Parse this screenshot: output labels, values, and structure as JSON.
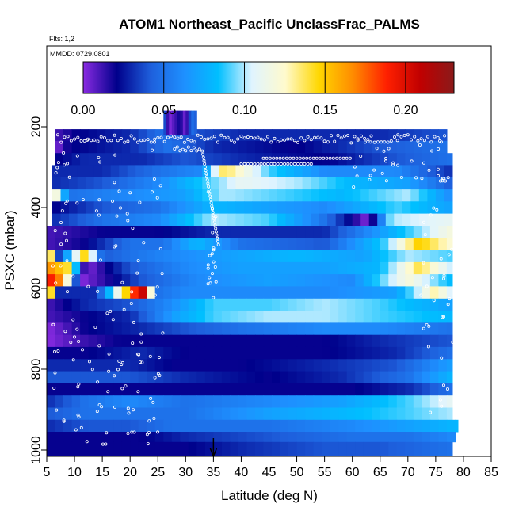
{
  "chart_data": {
    "type": "heatmap",
    "title": "ATOM1 Northeast_Pacific UnclassFrac_PALMS",
    "info_lines": [
      "Flts: 1,2",
      "MMDD: 0729,0801"
    ],
    "xlabel": "Latitude (deg N)",
    "ylabel": "PSXC (mbar)",
    "xlim": [
      5,
      85
    ],
    "ylim": [
      1000,
      0
    ],
    "x_ticks": [
      "5",
      "10",
      "15",
      "20",
      "25",
      "30",
      "35",
      "40",
      "45",
      "50",
      "55",
      "60",
      "65",
      "70",
      "75",
      "80",
      "85"
    ],
    "y_ticks": [
      "200",
      "400",
      "600",
      "800",
      "1000"
    ],
    "colorbar": {
      "ticks": [
        "0.00",
        "0.05",
        "0.10",
        "0.15",
        "0.20"
      ],
      "range": [
        0,
        0.23
      ],
      "colors": [
        "#8a2be2",
        "#00008b",
        "#1e5fdc",
        "#1e90ff",
        "#00bfff",
        "#e0f4ff",
        "#fffacd",
        "#ffd700",
        "#ff8c00",
        "#ff2000",
        "#c00000",
        "#8b1a1a"
      ]
    },
    "marker_latitude": 35,
    "pressure_levels": [
      220,
      250,
      280,
      310,
      340,
      370,
      400,
      430,
      460,
      490,
      520,
      550,
      580,
      610,
      640,
      670,
      700,
      730,
      760,
      790,
      820,
      850,
      880,
      910,
      940,
      970,
      990
    ],
    "rows": [
      {
        "p": 220,
        "lat0": 6.5,
        "lat1": 77,
        "stops": [
          [
            6.5,
            0.01
          ],
          [
            10,
            0.02
          ],
          [
            20,
            0.03
          ],
          [
            26,
            0.05
          ],
          [
            30,
            0.04
          ],
          [
            40,
            0.03
          ],
          [
            55,
            0.03
          ],
          [
            65,
            0.03
          ],
          [
            77,
            0.04
          ]
        ]
      },
      {
        "p": 250,
        "lat0": 6.5,
        "lat1": 77,
        "stops": [
          [
            6.5,
            0.0
          ],
          [
            9,
            0.02
          ],
          [
            20,
            0.03
          ],
          [
            27,
            0.05
          ],
          [
            35,
            0.03
          ],
          [
            50,
            0.02
          ],
          [
            65,
            0.04
          ],
          [
            77,
            0.05
          ]
        ]
      },
      {
        "p": 280,
        "lat0": 6.5,
        "lat1": 78,
        "stops": [
          [
            6.5,
            0.02
          ],
          [
            12,
            0.03
          ],
          [
            22,
            0.03
          ],
          [
            30,
            0.04
          ],
          [
            40,
            0.03
          ],
          [
            55,
            0.02
          ],
          [
            68,
            0.04
          ],
          [
            78,
            0.05
          ]
        ]
      },
      {
        "p": 310,
        "lat0": 6,
        "lat1": 78,
        "stops": [
          [
            6,
            0.03
          ],
          [
            15,
            0.03
          ],
          [
            25,
            0.05
          ],
          [
            33,
            0.06
          ],
          [
            37,
            0.14
          ],
          [
            45,
            0.09
          ],
          [
            55,
            0.06
          ],
          [
            68,
            0.06
          ],
          [
            78,
            0.03
          ]
        ]
      },
      {
        "p": 340,
        "lat0": 6,
        "lat1": 78,
        "stops": [
          [
            6,
            0.03
          ],
          [
            15,
            0.04
          ],
          [
            25,
            0.06
          ],
          [
            34,
            0.09
          ],
          [
            40,
            0.11
          ],
          [
            50,
            0.1
          ],
          [
            60,
            0.08
          ],
          [
            70,
            0.07
          ],
          [
            78,
            0.04
          ]
        ]
      },
      {
        "p": 370,
        "lat0": 6,
        "lat1": 78,
        "stops": [
          [
            6,
            0.14
          ],
          [
            9,
            0.05
          ],
          [
            20,
            0.06
          ],
          [
            30,
            0.07
          ],
          [
            37,
            0.1
          ],
          [
            48,
            0.09
          ],
          [
            58,
            0.08
          ],
          [
            70,
            0.1
          ],
          [
            78,
            0.06
          ]
        ]
      },
      {
        "p": 400,
        "lat0": 6,
        "lat1": 78,
        "stops": [
          [
            6,
            0.02
          ],
          [
            15,
            0.04
          ],
          [
            25,
            0.05
          ],
          [
            35,
            0.08
          ],
          [
            45,
            0.07
          ],
          [
            55,
            0.06
          ],
          [
            68,
            0.09
          ],
          [
            78,
            0.07
          ]
        ]
      },
      {
        "p": 430,
        "lat0": 6,
        "lat1": 78,
        "stops": [
          [
            6,
            0.03
          ],
          [
            15,
            0.05
          ],
          [
            25,
            0.06
          ],
          [
            35,
            0.1
          ],
          [
            45,
            0.09
          ],
          [
            55,
            0.05
          ],
          [
            63,
            0.0
          ],
          [
            67,
            0.1
          ],
          [
            78,
            0.11
          ]
        ]
      },
      {
        "p": 460,
        "lat0": 5,
        "lat1": 78,
        "stops": [
          [
            5,
            0.01
          ],
          [
            15,
            0.02
          ],
          [
            25,
            0.02
          ],
          [
            35,
            0.03
          ],
          [
            45,
            0.03
          ],
          [
            55,
            0.03
          ],
          [
            68,
            0.08
          ],
          [
            78,
            0.12
          ]
        ]
      },
      {
        "p": 490,
        "lat0": 5,
        "lat1": 78,
        "stops": [
          [
            5,
            0.01
          ],
          [
            12,
            0.02
          ],
          [
            20,
            0.05
          ],
          [
            26,
            0.05
          ],
          [
            32,
            0.08
          ],
          [
            40,
            0.05
          ],
          [
            55,
            0.04
          ],
          [
            66,
            0.09
          ],
          [
            72,
            0.15
          ],
          [
            78,
            0.12
          ]
        ]
      },
      {
        "p": 520,
        "lat0": 5,
        "lat1": 78,
        "stops": [
          [
            5,
            0.2
          ],
          [
            7,
            0.03
          ],
          [
            12,
            0.15
          ],
          [
            15,
            0.04
          ],
          [
            20,
            0.05
          ],
          [
            28,
            0.06
          ],
          [
            38,
            0.07
          ],
          [
            50,
            0.08
          ],
          [
            62,
            0.07
          ],
          [
            70,
            0.1
          ],
          [
            78,
            0.09
          ]
        ]
      },
      {
        "p": 550,
        "lat0": 5,
        "lat1": 78,
        "stops": [
          [
            5,
            0.17
          ],
          [
            9,
            0.14
          ],
          [
            12,
            0.0
          ],
          [
            16,
            0.02
          ],
          [
            20,
            0.04
          ],
          [
            30,
            0.06
          ],
          [
            40,
            0.07
          ],
          [
            55,
            0.07
          ],
          [
            65,
            0.08
          ],
          [
            72,
            0.14
          ],
          [
            78,
            0.1
          ]
        ]
      },
      {
        "p": 580,
        "lat0": 5,
        "lat1": 78,
        "stops": [
          [
            5,
            0.2
          ],
          [
            8,
            0.16
          ],
          [
            11,
            0.0
          ],
          [
            17,
            0.02
          ],
          [
            22,
            0.04
          ],
          [
            32,
            0.06
          ],
          [
            45,
            0.07
          ],
          [
            60,
            0.06
          ],
          [
            70,
            0.12
          ],
          [
            78,
            0.08
          ]
        ]
      },
      {
        "p": 610,
        "lat0": 5,
        "lat1": 78,
        "stops": [
          [
            5,
            0.21
          ],
          [
            7,
            0.03
          ],
          [
            14,
            0.03
          ],
          [
            19,
            0.14
          ],
          [
            22,
            0.22
          ],
          [
            25,
            0.05
          ],
          [
            30,
            0.06
          ],
          [
            40,
            0.06
          ],
          [
            55,
            0.06
          ],
          [
            68,
            0.07
          ],
          [
            75,
            0.13
          ],
          [
            78,
            0.1
          ]
        ]
      },
      {
        "p": 640,
        "lat0": 5,
        "lat1": 78,
        "stops": [
          [
            5,
            0.01
          ],
          [
            12,
            0.03
          ],
          [
            20,
            0.04
          ],
          [
            27,
            0.06
          ],
          [
            35,
            0.09
          ],
          [
            45,
            0.09
          ],
          [
            55,
            0.1
          ],
          [
            65,
            0.09
          ],
          [
            78,
            0.07
          ]
        ]
      },
      {
        "p": 670,
        "lat0": 5,
        "lat1": 78,
        "stops": [
          [
            5,
            0.01
          ],
          [
            12,
            0.02
          ],
          [
            20,
            0.03
          ],
          [
            28,
            0.07
          ],
          [
            35,
            0.09
          ],
          [
            45,
            0.1
          ],
          [
            55,
            0.1
          ],
          [
            65,
            0.09
          ],
          [
            78,
            0.08
          ]
        ]
      },
      {
        "p": 700,
        "lat0": 5,
        "lat1": 78,
        "stops": [
          [
            5,
            0.0
          ],
          [
            12,
            0.02
          ],
          [
            22,
            0.03
          ],
          [
            30,
            0.04
          ],
          [
            40,
            0.05
          ],
          [
            55,
            0.06
          ],
          [
            65,
            0.06
          ],
          [
            78,
            0.05
          ]
        ]
      },
      {
        "p": 730,
        "lat0": 5,
        "lat1": 78,
        "stops": [
          [
            5,
            0.0
          ],
          [
            10,
            0.01
          ],
          [
            18,
            0.02
          ],
          [
            28,
            0.02
          ],
          [
            40,
            0.02
          ],
          [
            55,
            0.02
          ],
          [
            65,
            0.03
          ],
          [
            78,
            0.04
          ]
        ]
      },
      {
        "p": 760,
        "lat0": 5,
        "lat1": 78,
        "stops": [
          [
            5,
            0.02
          ],
          [
            12,
            0.02
          ],
          [
            22,
            0.03
          ],
          [
            30,
            0.02
          ],
          [
            40,
            0.02
          ],
          [
            55,
            0.02
          ],
          [
            68,
            0.03
          ],
          [
            78,
            0.05
          ]
        ]
      },
      {
        "p": 790,
        "lat0": 5,
        "lat1": 78,
        "stops": [
          [
            5,
            0.03
          ],
          [
            12,
            0.03
          ],
          [
            20,
            0.03
          ],
          [
            28,
            0.02
          ],
          [
            40,
            0.02
          ],
          [
            55,
            0.03
          ],
          [
            68,
            0.04
          ],
          [
            78,
            0.07
          ]
        ]
      },
      {
        "p": 820,
        "lat0": 5,
        "lat1": 78,
        "stops": [
          [
            5,
            0.04
          ],
          [
            12,
            0.04
          ],
          [
            20,
            0.04
          ],
          [
            30,
            0.03
          ],
          [
            45,
            0.02
          ],
          [
            58,
            0.03
          ],
          [
            70,
            0.05
          ],
          [
            78,
            0.08
          ]
        ]
      },
      {
        "p": 850,
        "lat0": 5,
        "lat1": 78,
        "stops": [
          [
            5,
            0.02
          ],
          [
            12,
            0.02
          ],
          [
            22,
            0.02
          ],
          [
            30,
            0.02
          ],
          [
            45,
            0.02
          ],
          [
            60,
            0.02
          ],
          [
            70,
            0.03
          ],
          [
            78,
            0.05
          ]
        ]
      },
      {
        "p": 880,
        "lat0": 5,
        "lat1": 78,
        "stops": [
          [
            5,
            0.03
          ],
          [
            12,
            0.05
          ],
          [
            20,
            0.06
          ],
          [
            30,
            0.05
          ],
          [
            45,
            0.06
          ],
          [
            58,
            0.07
          ],
          [
            70,
            0.09
          ],
          [
            78,
            0.11
          ]
        ]
      },
      {
        "p": 910,
        "lat0": 5,
        "lat1": 78,
        "stops": [
          [
            5,
            0.04
          ],
          [
            12,
            0.05
          ],
          [
            20,
            0.05
          ],
          [
            30,
            0.05
          ],
          [
            45,
            0.07
          ],
          [
            58,
            0.08
          ],
          [
            70,
            0.09
          ],
          [
            78,
            0.1
          ]
        ]
      },
      {
        "p": 940,
        "lat0": 5,
        "lat1": 79,
        "stops": [
          [
            5,
            0.03
          ],
          [
            12,
            0.04
          ],
          [
            20,
            0.04
          ],
          [
            27,
            0.05
          ],
          [
            45,
            0.05
          ],
          [
            60,
            0.06
          ],
          [
            70,
            0.07
          ],
          [
            79,
            0.08
          ]
        ]
      },
      {
        "p": 970,
        "lat0": 5,
        "lat1": 78.5,
        "stops": [
          [
            5,
            0.02
          ],
          [
            12,
            0.02
          ],
          [
            22,
            0.02
          ],
          [
            30,
            0.03
          ],
          [
            45,
            0.04
          ],
          [
            60,
            0.05
          ],
          [
            70,
            0.05
          ],
          [
            78.5,
            0.06
          ]
        ]
      },
      {
        "p": 990,
        "lat0": 5,
        "lat1": 78,
        "stops": [
          [
            5,
            0.02
          ],
          [
            20,
            0.02
          ],
          [
            30,
            0.02
          ],
          [
            40,
            0.03
          ],
          [
            55,
            0.04
          ],
          [
            65,
            0.04
          ],
          [
            78,
            0.05
          ]
        ]
      }
    ],
    "top_patch": {
      "p_top": 160,
      "p_bot": 220,
      "lat0": 26,
      "lat1": 32,
      "stops": [
        [
          26,
          0.05
        ],
        [
          27,
          0.0
        ],
        [
          29,
          0.02
        ],
        [
          30,
          0.0
        ],
        [
          31,
          0.05
        ],
        [
          32,
          0.04
        ]
      ]
    }
  }
}
